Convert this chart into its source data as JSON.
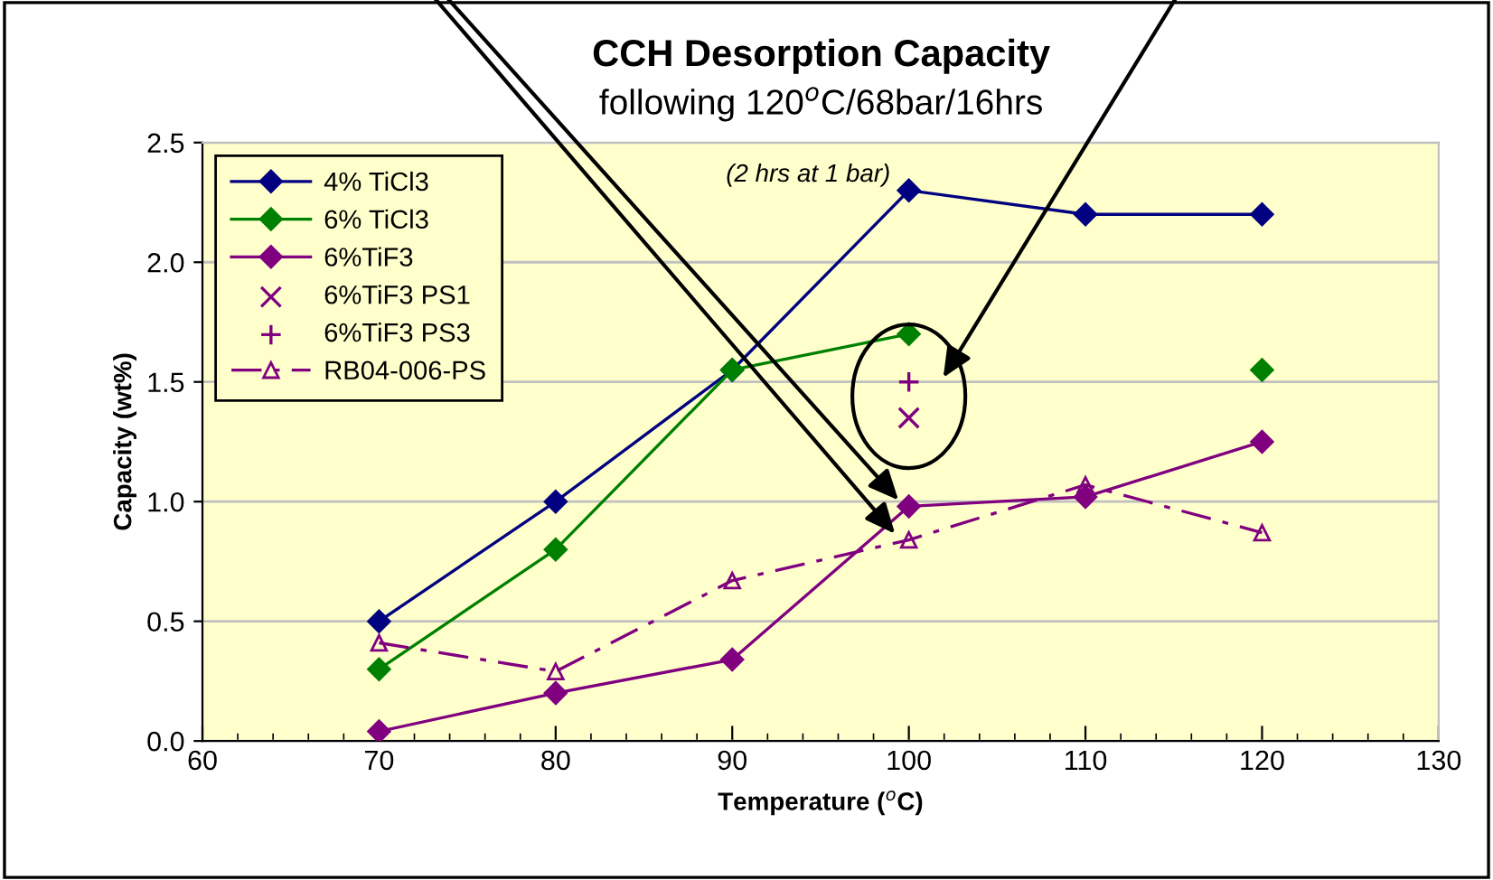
{
  "chart_data": {
    "type": "line",
    "title": "CCH Desorption Capacity",
    "subtitle": "following 120$^{o}$C/68bar/16hrs",
    "annotations": [
      "(2 hrs at 1 bar)"
    ],
    "xlabel": "Temperature ($^{o}$C)",
    "ylabel": "Capacity (wt%)",
    "x": [
      70,
      80,
      90,
      100,
      110,
      120
    ],
    "series": [
      {
        "name": "4% TiCl3",
        "color": "#000080",
        "marker": "diamond",
        "line_style": "solid",
        "values": [
          0.5,
          1.0,
          1.55,
          2.3,
          2.2,
          2.2
        ]
      },
      {
        "name": "6% TiCl3",
        "color": "#008000",
        "marker": "diamond",
        "line_style": "solid",
        "values": [
          0.3,
          0.8,
          1.55,
          1.7,
          null,
          1.55
        ]
      },
      {
        "name": "6%TiF3",
        "color": "#800080",
        "marker": "diamond",
        "line_style": "solid",
        "values": [
          0.04,
          0.2,
          0.34,
          0.98,
          1.02,
          1.25
        ]
      },
      {
        "name": "6%TiF3 PS1",
        "type": "scatter",
        "color": "#800080",
        "marker": "cross",
        "x": [
          100
        ],
        "values": [
          1.35
        ]
      },
      {
        "name": "6%TiF3 PS3",
        "type": "scatter",
        "color": "#800080",
        "marker": "plus",
        "x": [
          100
        ],
        "values": [
          1.5
        ]
      },
      {
        "name": "RB04-006-PS",
        "color": "#800080",
        "marker": "triangle",
        "line_style": "dashdot",
        "values": [
          0.41,
          0.29,
          0.67,
          0.84,
          1.07,
          0.87
        ]
      }
    ],
    "xlim": [
      60,
      130
    ],
    "xticks": [
      60,
      70,
      80,
      90,
      100,
      110,
      120,
      130
    ],
    "ylim": [
      0,
      2.5
    ],
    "yticks": [
      {
        "value": 0,
        "label": "0.0"
      },
      0.5,
      {
        "value": 1,
        "label": "1.0"
      },
      1.5,
      {
        "value": 2,
        "label": "2.0"
      },
      2.5
    ],
    "grid": "y",
    "legend": "top left"
  }
}
